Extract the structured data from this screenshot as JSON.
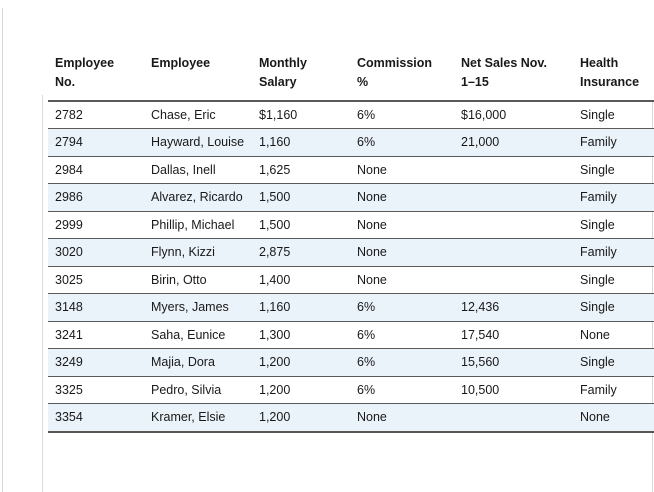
{
  "page": {
    "background_color": "#ffffff",
    "edge_line_color": "#d7d7d7",
    "margin_line_color": "#dcdcdc"
  },
  "table": {
    "style": {
      "banded_row_color": "#eaf2fa",
      "border_color": "#5a5a5a",
      "text_color": "#191919"
    },
    "columns": [
      {
        "id": "employee-no",
        "label": "Employee\nNo."
      },
      {
        "id": "employee",
        "label": "Employee"
      },
      {
        "id": "monthly-salary",
        "label": "Monthly\nSalary"
      },
      {
        "id": "commission-pct",
        "label": "Commission\n%"
      },
      {
        "id": "net-sales",
        "label": "Net Sales Nov.\n1–15"
      },
      {
        "id": "health-insurance",
        "label": "Health\nInsurance"
      }
    ],
    "rows": [
      [
        "2782",
        "Chase, Eric",
        "$1,160",
        "6%",
        "$16,000",
        "Single"
      ],
      [
        "2794",
        "Hayward, Louise",
        "1,160",
        "6%",
        "21,000",
        "Family"
      ],
      [
        "2984",
        "Dallas, Inell",
        "1,625",
        "None",
        "",
        "Single"
      ],
      [
        "2986",
        "Alvarez, Ricardo",
        "1,500",
        "None",
        "",
        "Family"
      ],
      [
        "2999",
        "Phillip, Michael",
        "1,500",
        "None",
        "",
        "Single"
      ],
      [
        "3020",
        "Flynn, Kizzi",
        "2,875",
        "None",
        "",
        "Family"
      ],
      [
        "3025",
        "Birin, Otto",
        "1,400",
        "None",
        "",
        "Single"
      ],
      [
        "3148",
        "Myers, James",
        "1,160",
        "6%",
        "12,436",
        "Single"
      ],
      [
        "3241",
        "Saha, Eunice",
        "1,300",
        "6%",
        "17,540",
        "None"
      ],
      [
        "3249",
        "Majia, Dora",
        "1,200",
        "6%",
        "15,560",
        "Single"
      ],
      [
        "3325",
        "Pedro, Silvia",
        "1,200",
        "6%",
        "10,500",
        "Family"
      ],
      [
        "3354",
        "Kramer, Elsie",
        "1,200",
        "None",
        "",
        "None"
      ]
    ]
  }
}
